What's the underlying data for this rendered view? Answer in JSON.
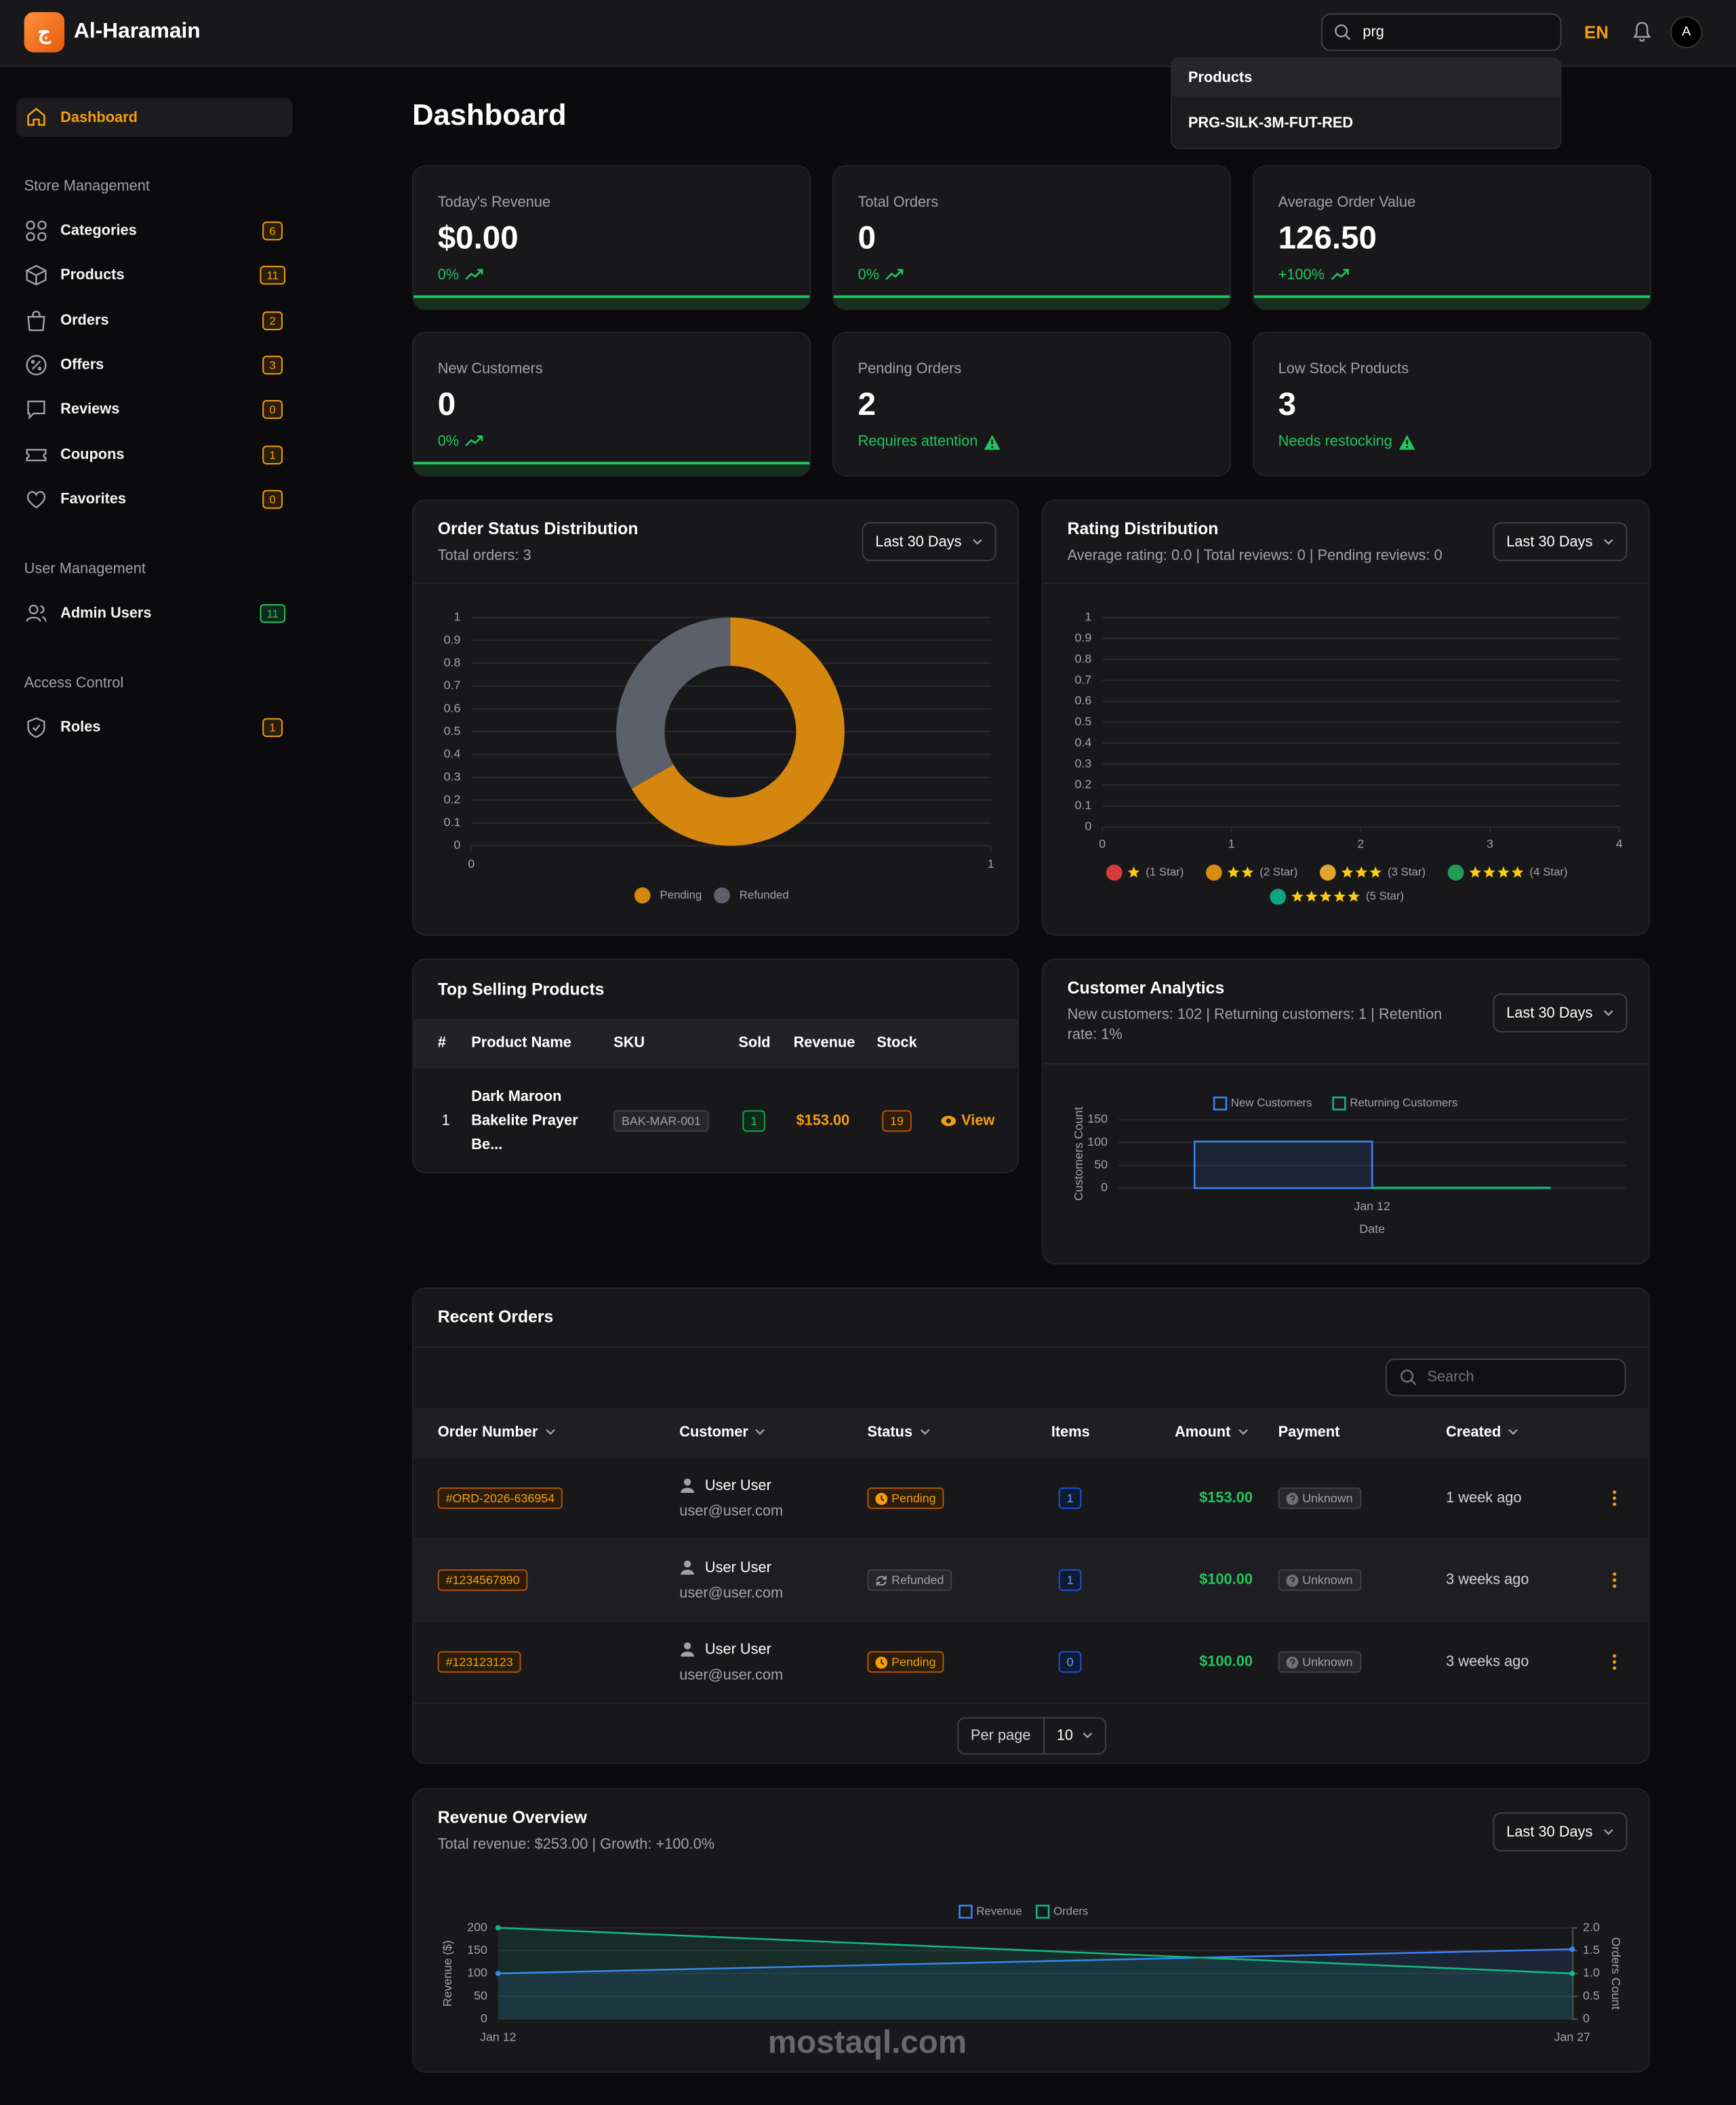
{
  "brand": {
    "logo": "ج",
    "name": "Al-Haramain"
  },
  "topbar": {
    "search": "prg",
    "language": "EN",
    "avatar": "A"
  },
  "search_results": {
    "group": "Products",
    "items": [
      "PRG-SILK-3M-FUT-RED"
    ]
  },
  "sidebar": {
    "active": "Dashboard",
    "sections": [
      {
        "title": "Store Management",
        "items": [
          {
            "label": "Categories",
            "count": "6"
          },
          {
            "label": "Products",
            "count": "11"
          },
          {
            "label": "Orders",
            "count": "2"
          },
          {
            "label": "Offers",
            "count": "3"
          },
          {
            "label": "Reviews",
            "count": "0"
          },
          {
            "label": "Coupons",
            "count": "1"
          },
          {
            "label": "Favorites",
            "count": "0"
          }
        ]
      },
      {
        "title": "User Management",
        "items": [
          {
            "label": "Admin Users",
            "count": "11",
            "tone": "green"
          }
        ]
      },
      {
        "title": "Access Control",
        "items": [
          {
            "label": "Roles",
            "count": "1"
          }
        ]
      }
    ]
  },
  "page_title": "Dashboard",
  "stats": [
    {
      "label": "Today's Revenue",
      "value": "$0.00",
      "note": "0%",
      "trend": "up"
    },
    {
      "label": "Total Orders",
      "value": "0",
      "note": "0%",
      "trend": "up"
    },
    {
      "label": "Average Order Value",
      "value": "126.50",
      "note": "+100%",
      "trend": "up"
    },
    {
      "label": "New Customers",
      "value": "0",
      "note": "0%",
      "trend": "up"
    },
    {
      "label": "Pending Orders",
      "value": "2",
      "note": "Requires attention",
      "trend": "warning"
    },
    {
      "label": "Low Stock Products",
      "value": "3",
      "note": "Needs restocking",
      "trend": "warning"
    }
  ],
  "chart_data": [
    {
      "type": "doughnut",
      "title": "Order Status Distribution",
      "subtitle": "Total orders: 3",
      "period": "Last 30 Days",
      "categories": [
        "Pending",
        "Refunded"
      ],
      "values": [
        2,
        1
      ],
      "colors": [
        "#d4860f",
        "#5b606b"
      ],
      "xlim": [
        0,
        1
      ],
      "xticks": [
        0,
        1
      ],
      "ylim": [
        0,
        1
      ],
      "yticks": [
        0,
        0.1,
        0.2,
        0.3,
        0.4,
        0.5,
        0.6,
        0.7,
        0.8,
        0.9,
        1
      ],
      "grid": true,
      "legend": "bottom"
    },
    {
      "type": "bar",
      "title": "Rating Distribution",
      "subtitle": "Average rating: 0.0 | Total reviews: 0 | Pending reviews: 0",
      "period": "Last 30 Days",
      "series": [
        {
          "name": "(1 Star)",
          "stars": 1,
          "color": "#d63c3c",
          "values": []
        },
        {
          "name": "(2 Star)",
          "stars": 2,
          "color": "#d98b0f",
          "values": []
        },
        {
          "name": "(3 Star)",
          "stars": 3,
          "color": "#e0a52a",
          "values": []
        },
        {
          "name": "(4 Star)",
          "stars": 4,
          "color": "#1f9d55",
          "values": []
        },
        {
          "name": "(5 Star)",
          "stars": 5,
          "color": "#10a37f",
          "values": []
        }
      ],
      "xlim": [
        0,
        4
      ],
      "xticks": [
        0,
        1,
        2,
        3,
        4
      ],
      "ylim": [
        0,
        1
      ],
      "yticks": [
        0,
        0.1,
        0.2,
        0.3,
        0.4,
        0.5,
        0.6,
        0.7,
        0.8,
        0.9,
        1
      ],
      "grid": true,
      "legend": "bottom"
    },
    {
      "type": "bar",
      "title": "Customer Analytics",
      "subtitle": "New customers: 102 | Returning customers: 1 | Retention rate: 1%",
      "period": "Last 30 Days",
      "categories": [
        "Jan 12"
      ],
      "series": [
        {
          "name": "New Customers",
          "color": "#3b82f6",
          "values": [
            102
          ]
        },
        {
          "name": "Returning Customers",
          "color": "#10b981",
          "values": [
            1
          ]
        }
      ],
      "ylim": [
        0,
        150
      ],
      "yticks": [
        0,
        50,
        100,
        150
      ],
      "ylabel": "Customers Count",
      "xlabel": "Date",
      "grid": true,
      "legend": "top"
    },
    {
      "type": "line",
      "title": "Revenue Overview",
      "subtitle": "Total revenue: $253.00 | Growth: +100.0%",
      "period": "Last 30 Days",
      "categories": [
        "Jan 12",
        "Jan 27"
      ],
      "series": [
        {
          "name": "Revenue",
          "color": "#3b82f6",
          "values": [
            100,
            153
          ]
        },
        {
          "name": "Orders",
          "color": "#10b981",
          "values": [
            2,
            1
          ],
          "axis": "y2"
        }
      ],
      "ylim": [
        0,
        200
      ],
      "yticks": [
        0,
        50,
        100,
        150,
        200
      ],
      "y2lim": [
        0,
        2
      ],
      "y2ticks": [
        0,
        0.5,
        {
          "value": 1,
          "label": "1.0"
        },
        1.5,
        {
          "value": 2,
          "label": "2.0"
        }
      ],
      "ylabel": "Revenue ($)",
      "y2label": "Orders Count",
      "grid": true,
      "fill": true,
      "legend": "top"
    }
  ],
  "top_selling": {
    "title": "Top Selling Products",
    "columns": [
      "#",
      "Product Name",
      "SKU",
      "Sold",
      "Revenue",
      "Stock"
    ],
    "rows": [
      [
        "1",
        "Dark Maroon Bakelite Prayer Be...",
        "BAK-MAR-001",
        "1",
        "$153.00",
        "19"
      ]
    ],
    "action": "View"
  },
  "recent_orders": {
    "title": "Recent Orders",
    "search": "Search",
    "columns": [
      "Order Number",
      "Customer",
      "Status",
      "Items",
      "Amount",
      "Payment",
      "Created"
    ],
    "sortable": [
      true,
      true,
      true,
      false,
      true,
      false,
      true
    ],
    "rows": [
      {
        "order": "#ORD-2026-636954",
        "customer": "User User",
        "email": "user@user.com",
        "status": "Pending",
        "tone": "warning",
        "items": "1",
        "amount": "$153.00",
        "payment": "Unknown",
        "created": "1 week ago"
      },
      {
        "order": "#1234567890",
        "customer": "User User",
        "email": "user@user.com",
        "status": "Refunded",
        "tone": "muted",
        "items": "1",
        "amount": "$100.00",
        "payment": "Unknown",
        "created": "3 weeks ago"
      },
      {
        "order": "#123123123",
        "customer": "User User",
        "email": "user@user.com",
        "status": "Pending",
        "tone": "warning",
        "items": "0",
        "amount": "$100.00",
        "payment": "Unknown",
        "created": "3 weeks ago"
      }
    ],
    "per_page_label": "Per page",
    "per_page": "10"
  },
  "watermark": "mostaql.com"
}
